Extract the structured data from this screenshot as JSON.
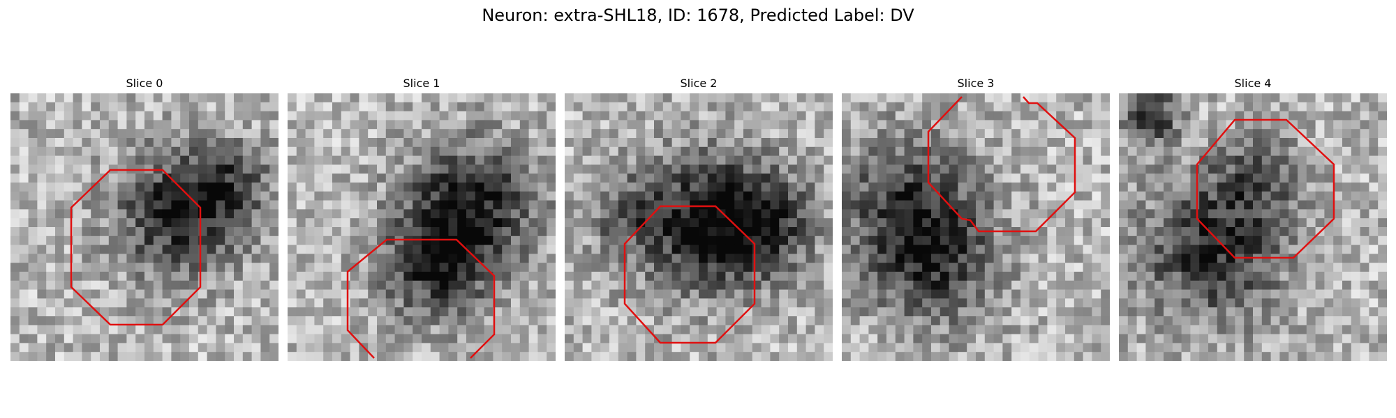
{
  "figure": {
    "title": "Neuron: extra-SHL18, ID: 1678, Predicted Label: DV",
    "roi_color": "#e01010",
    "colormap": "gray",
    "panels": [
      {
        "title": "Slice 0"
      },
      {
        "title": "Slice 1"
      },
      {
        "title": "Slice 2"
      },
      {
        "title": "Slice 3"
      },
      {
        "title": "Slice 4"
      }
    ]
  }
}
